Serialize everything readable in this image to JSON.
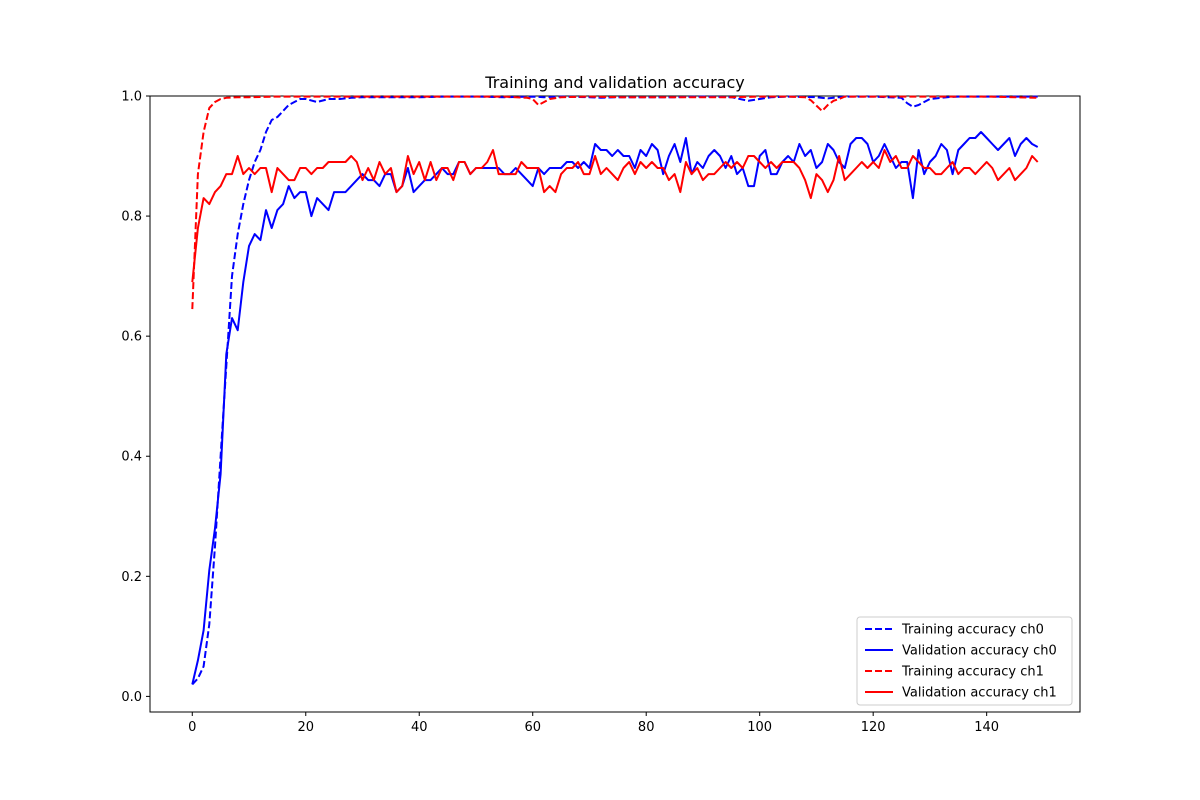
{
  "chart_data": {
    "type": "line",
    "title": "Training and validation accuracy",
    "xlabel": "",
    "ylabel": "",
    "xlim": [
      -7.45,
      156.45
    ],
    "ylim": [
      -0.026,
      1.0
    ],
    "x_ticks": [
      0,
      20,
      40,
      60,
      80,
      100,
      120,
      140
    ],
    "y_ticks": [
      0.0,
      0.2,
      0.4,
      0.6,
      0.8,
      1.0
    ],
    "x_tick_labels": [
      "0",
      "20",
      "40",
      "60",
      "80",
      "100",
      "120",
      "140"
    ],
    "y_tick_labels": [
      "0.0",
      "0.2",
      "0.4",
      "0.6",
      "0.8",
      "1.0"
    ],
    "grid": false,
    "legend_position": "bottom-right",
    "series": [
      {
        "name": "Training accuracy ch0",
        "color": "#0000ff",
        "dash": "dashed",
        "x": [
          0,
          1,
          2,
          3,
          4,
          5,
          6,
          7,
          8,
          9,
          10,
          11,
          12,
          13,
          14,
          15,
          16,
          17,
          18,
          19,
          20,
          22,
          24,
          26,
          28,
          30,
          35,
          40,
          45,
          50,
          55,
          60,
          62,
          65,
          70,
          72,
          75,
          80,
          85,
          90,
          95,
          98,
          100,
          102,
          105,
          110,
          112,
          115,
          120,
          125,
          126,
          127,
          128,
          130,
          133,
          135,
          140,
          145,
          149
        ],
        "values": [
          0.02,
          0.03,
          0.05,
          0.12,
          0.25,
          0.4,
          0.55,
          0.7,
          0.77,
          0.82,
          0.86,
          0.89,
          0.91,
          0.94,
          0.96,
          0.965,
          0.975,
          0.985,
          0.99,
          0.995,
          0.995,
          0.99,
          0.995,
          0.995,
          0.997,
          0.998,
          0.998,
          0.998,
          0.999,
          0.999,
          0.998,
          0.999,
          0.998,
          0.999,
          0.998,
          0.997,
          0.998,
          0.998,
          0.998,
          0.999,
          0.998,
          0.992,
          0.995,
          0.998,
          0.999,
          0.998,
          0.996,
          0.999,
          0.999,
          0.997,
          0.988,
          0.982,
          0.985,
          0.995,
          0.998,
          0.999,
          0.999,
          0.999,
          0.999
        ]
      },
      {
        "name": "Validation accuracy ch0",
        "color": "#0000ff",
        "dash": "solid",
        "x": [
          0,
          1,
          2,
          3,
          4,
          5,
          6,
          7,
          8,
          9,
          10,
          11,
          12,
          13,
          14,
          15,
          16,
          17,
          18,
          19,
          20,
          21,
          22,
          23,
          24,
          25,
          26,
          27,
          28,
          29,
          30,
          31,
          32,
          33,
          34,
          35,
          36,
          37,
          38,
          39,
          40,
          41,
          42,
          43,
          44,
          45,
          46,
          47,
          48,
          49,
          50,
          51,
          52,
          53,
          54,
          55,
          56,
          57,
          58,
          59,
          60,
          61,
          62,
          63,
          64,
          65,
          66,
          67,
          68,
          69,
          70,
          71,
          72,
          73,
          74,
          75,
          76,
          77,
          78,
          79,
          80,
          81,
          82,
          83,
          84,
          85,
          86,
          87,
          88,
          89,
          90,
          91,
          92,
          93,
          94,
          95,
          96,
          97,
          98,
          99,
          100,
          101,
          102,
          103,
          104,
          105,
          106,
          107,
          108,
          109,
          110,
          111,
          112,
          113,
          114,
          115,
          116,
          117,
          118,
          119,
          120,
          121,
          122,
          123,
          124,
          125,
          126,
          127,
          128,
          129,
          130,
          131,
          132,
          133,
          134,
          135,
          136,
          137,
          138,
          139,
          140,
          141,
          142,
          143,
          144,
          145,
          146,
          147,
          148,
          149
        ],
        "values": [
          0.02,
          0.06,
          0.11,
          0.21,
          0.28,
          0.37,
          0.57,
          0.63,
          0.61,
          0.69,
          0.75,
          0.77,
          0.76,
          0.81,
          0.78,
          0.81,
          0.82,
          0.85,
          0.83,
          0.84,
          0.84,
          0.8,
          0.83,
          0.82,
          0.81,
          0.84,
          0.84,
          0.84,
          0.85,
          0.86,
          0.87,
          0.86,
          0.86,
          0.85,
          0.87,
          0.87,
          0.84,
          0.85,
          0.88,
          0.84,
          0.85,
          0.86,
          0.86,
          0.87,
          0.88,
          0.87,
          0.87,
          0.89,
          0.89,
          0.87,
          0.88,
          0.88,
          0.88,
          0.88,
          0.88,
          0.87,
          0.87,
          0.88,
          0.87,
          0.86,
          0.85,
          0.88,
          0.87,
          0.88,
          0.88,
          0.88,
          0.89,
          0.89,
          0.88,
          0.89,
          0.88,
          0.92,
          0.91,
          0.91,
          0.9,
          0.91,
          0.9,
          0.9,
          0.88,
          0.91,
          0.9,
          0.92,
          0.91,
          0.87,
          0.9,
          0.92,
          0.89,
          0.93,
          0.87,
          0.89,
          0.88,
          0.9,
          0.91,
          0.9,
          0.88,
          0.9,
          0.87,
          0.88,
          0.85,
          0.85,
          0.9,
          0.91,
          0.87,
          0.87,
          0.89,
          0.9,
          0.89,
          0.92,
          0.9,
          0.91,
          0.88,
          0.89,
          0.92,
          0.91,
          0.89,
          0.88,
          0.92,
          0.93,
          0.93,
          0.92,
          0.89,
          0.9,
          0.92,
          0.9,
          0.88,
          0.89,
          0.89,
          0.83,
          0.91,
          0.87,
          0.89,
          0.9,
          0.92,
          0.91,
          0.87,
          0.91,
          0.92,
          0.93,
          0.93,
          0.94,
          0.93,
          0.92,
          0.91,
          0.92,
          0.93,
          0.9,
          0.92,
          0.93,
          0.92,
          0.915
        ]
      },
      {
        "name": "Training accuracy ch1",
        "color": "#ff0000",
        "dash": "dashed",
        "x": [
          0,
          1,
          2,
          3,
          4,
          5,
          6,
          8,
          10,
          15,
          20,
          25,
          30,
          35,
          40,
          45,
          50,
          55,
          59,
          60,
          61,
          62,
          63,
          65,
          70,
          75,
          80,
          85,
          90,
          95,
          100,
          105,
          108,
          109,
          110,
          111,
          112,
          113,
          114,
          115,
          120,
          125,
          130,
          135,
          140,
          145,
          149
        ],
        "values": [
          0.645,
          0.87,
          0.94,
          0.98,
          0.99,
          0.995,
          0.997,
          0.998,
          0.998,
          0.999,
          0.999,
          0.999,
          0.999,
          0.999,
          0.999,
          0.999,
          0.999,
          0.999,
          0.997,
          0.995,
          0.985,
          0.99,
          0.995,
          0.998,
          0.999,
          0.998,
          0.998,
          0.998,
          0.998,
          0.998,
          0.999,
          0.999,
          0.998,
          0.993,
          0.984,
          0.975,
          0.985,
          0.992,
          0.995,
          0.999,
          0.999,
          0.999,
          0.999,
          0.999,
          0.999,
          0.998,
          0.997
        ]
      },
      {
        "name": "Validation accuracy ch1",
        "color": "#ff0000",
        "dash": "solid",
        "x": [
          0,
          1,
          2,
          3,
          4,
          5,
          6,
          7,
          8,
          9,
          10,
          11,
          12,
          13,
          14,
          15,
          16,
          17,
          18,
          19,
          20,
          21,
          22,
          23,
          24,
          25,
          26,
          27,
          28,
          29,
          30,
          31,
          32,
          33,
          34,
          35,
          36,
          37,
          38,
          39,
          40,
          41,
          42,
          43,
          44,
          45,
          46,
          47,
          48,
          49,
          50,
          51,
          52,
          53,
          54,
          55,
          56,
          57,
          58,
          59,
          60,
          61,
          62,
          63,
          64,
          65,
          66,
          67,
          68,
          69,
          70,
          71,
          72,
          73,
          74,
          75,
          76,
          77,
          78,
          79,
          80,
          81,
          82,
          83,
          84,
          85,
          86,
          87,
          88,
          89,
          90,
          91,
          92,
          93,
          94,
          95,
          96,
          97,
          98,
          99,
          100,
          101,
          102,
          103,
          104,
          105,
          106,
          107,
          108,
          109,
          110,
          111,
          112,
          113,
          114,
          115,
          116,
          117,
          118,
          119,
          120,
          121,
          122,
          123,
          124,
          125,
          126,
          127,
          128,
          129,
          130,
          131,
          132,
          133,
          134,
          135,
          136,
          137,
          138,
          139,
          140,
          141,
          142,
          143,
          144,
          145,
          146,
          147,
          148,
          149
        ],
        "values": [
          0.69,
          0.78,
          0.83,
          0.82,
          0.84,
          0.85,
          0.87,
          0.87,
          0.9,
          0.87,
          0.88,
          0.87,
          0.88,
          0.88,
          0.84,
          0.88,
          0.87,
          0.86,
          0.86,
          0.88,
          0.88,
          0.87,
          0.88,
          0.88,
          0.89,
          0.89,
          0.89,
          0.89,
          0.9,
          0.89,
          0.86,
          0.88,
          0.86,
          0.89,
          0.87,
          0.88,
          0.84,
          0.85,
          0.9,
          0.87,
          0.89,
          0.86,
          0.89,
          0.86,
          0.88,
          0.88,
          0.86,
          0.89,
          0.89,
          0.87,
          0.88,
          0.88,
          0.89,
          0.91,
          0.87,
          0.87,
          0.87,
          0.87,
          0.89,
          0.88,
          0.88,
          0.88,
          0.84,
          0.85,
          0.84,
          0.87,
          0.88,
          0.88,
          0.89,
          0.87,
          0.87,
          0.9,
          0.87,
          0.88,
          0.87,
          0.86,
          0.88,
          0.89,
          0.87,
          0.89,
          0.88,
          0.89,
          0.88,
          0.88,
          0.86,
          0.87,
          0.84,
          0.89,
          0.87,
          0.88,
          0.86,
          0.87,
          0.87,
          0.88,
          0.89,
          0.88,
          0.89,
          0.88,
          0.9,
          0.9,
          0.89,
          0.88,
          0.89,
          0.88,
          0.89,
          0.89,
          0.89,
          0.88,
          0.86,
          0.83,
          0.87,
          0.86,
          0.84,
          0.86,
          0.9,
          0.86,
          0.87,
          0.88,
          0.89,
          0.88,
          0.89,
          0.88,
          0.91,
          0.89,
          0.9,
          0.88,
          0.88,
          0.9,
          0.89,
          0.88,
          0.88,
          0.87,
          0.87,
          0.88,
          0.89,
          0.87,
          0.88,
          0.88,
          0.87,
          0.88,
          0.89,
          0.88,
          0.86,
          0.87,
          0.88,
          0.86,
          0.87,
          0.88,
          0.9,
          0.89
        ]
      }
    ]
  }
}
